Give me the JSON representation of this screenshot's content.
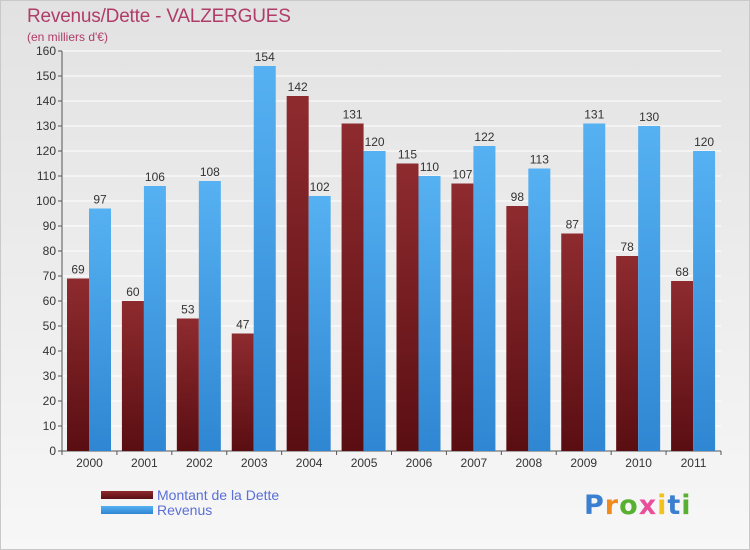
{
  "title": "Revenus/Dette - VALZERGUES",
  "subtitle": "(en milliers d'€)",
  "logo": {
    "text": "Proxiti",
    "letters": [
      {
        "ch": "P",
        "color": "#3b7fd0"
      },
      {
        "ch": "r",
        "color": "#f08a1c"
      },
      {
        "ch": "o",
        "color": "#58b030"
      },
      {
        "ch": "x",
        "color": "#e94f9a"
      },
      {
        "ch": "i",
        "color": "#f4c21c"
      },
      {
        "ch": "t",
        "color": "#3b7fd0"
      },
      {
        "ch": "i",
        "color": "#58b030"
      }
    ]
  },
  "colors": {
    "dette": "#7a1e22",
    "revenus": "#3d9ee8",
    "title": "#b03c68"
  },
  "chart_data": {
    "type": "bar",
    "title": "Revenus/Dette - VALZERGUES",
    "subtitle": "(en milliers d'€)",
    "categories": [
      "2000",
      "2001",
      "2002",
      "2003",
      "2004",
      "2005",
      "2006",
      "2007",
      "2008",
      "2009",
      "2010",
      "2011"
    ],
    "series": [
      {
        "name": "Montant de la Dette",
        "values": [
          69,
          60,
          53,
          47,
          142,
          131,
          115,
          107,
          98,
          87,
          78,
          68
        ]
      },
      {
        "name": "Revenus",
        "values": [
          97,
          106,
          108,
          154,
          102,
          120,
          110,
          122,
          113,
          131,
          130,
          120
        ]
      }
    ],
    "ylim": [
      0,
      160
    ],
    "ytick_step": 10,
    "grid": true,
    "legend_position": "bottom-left",
    "data_labels": true
  }
}
